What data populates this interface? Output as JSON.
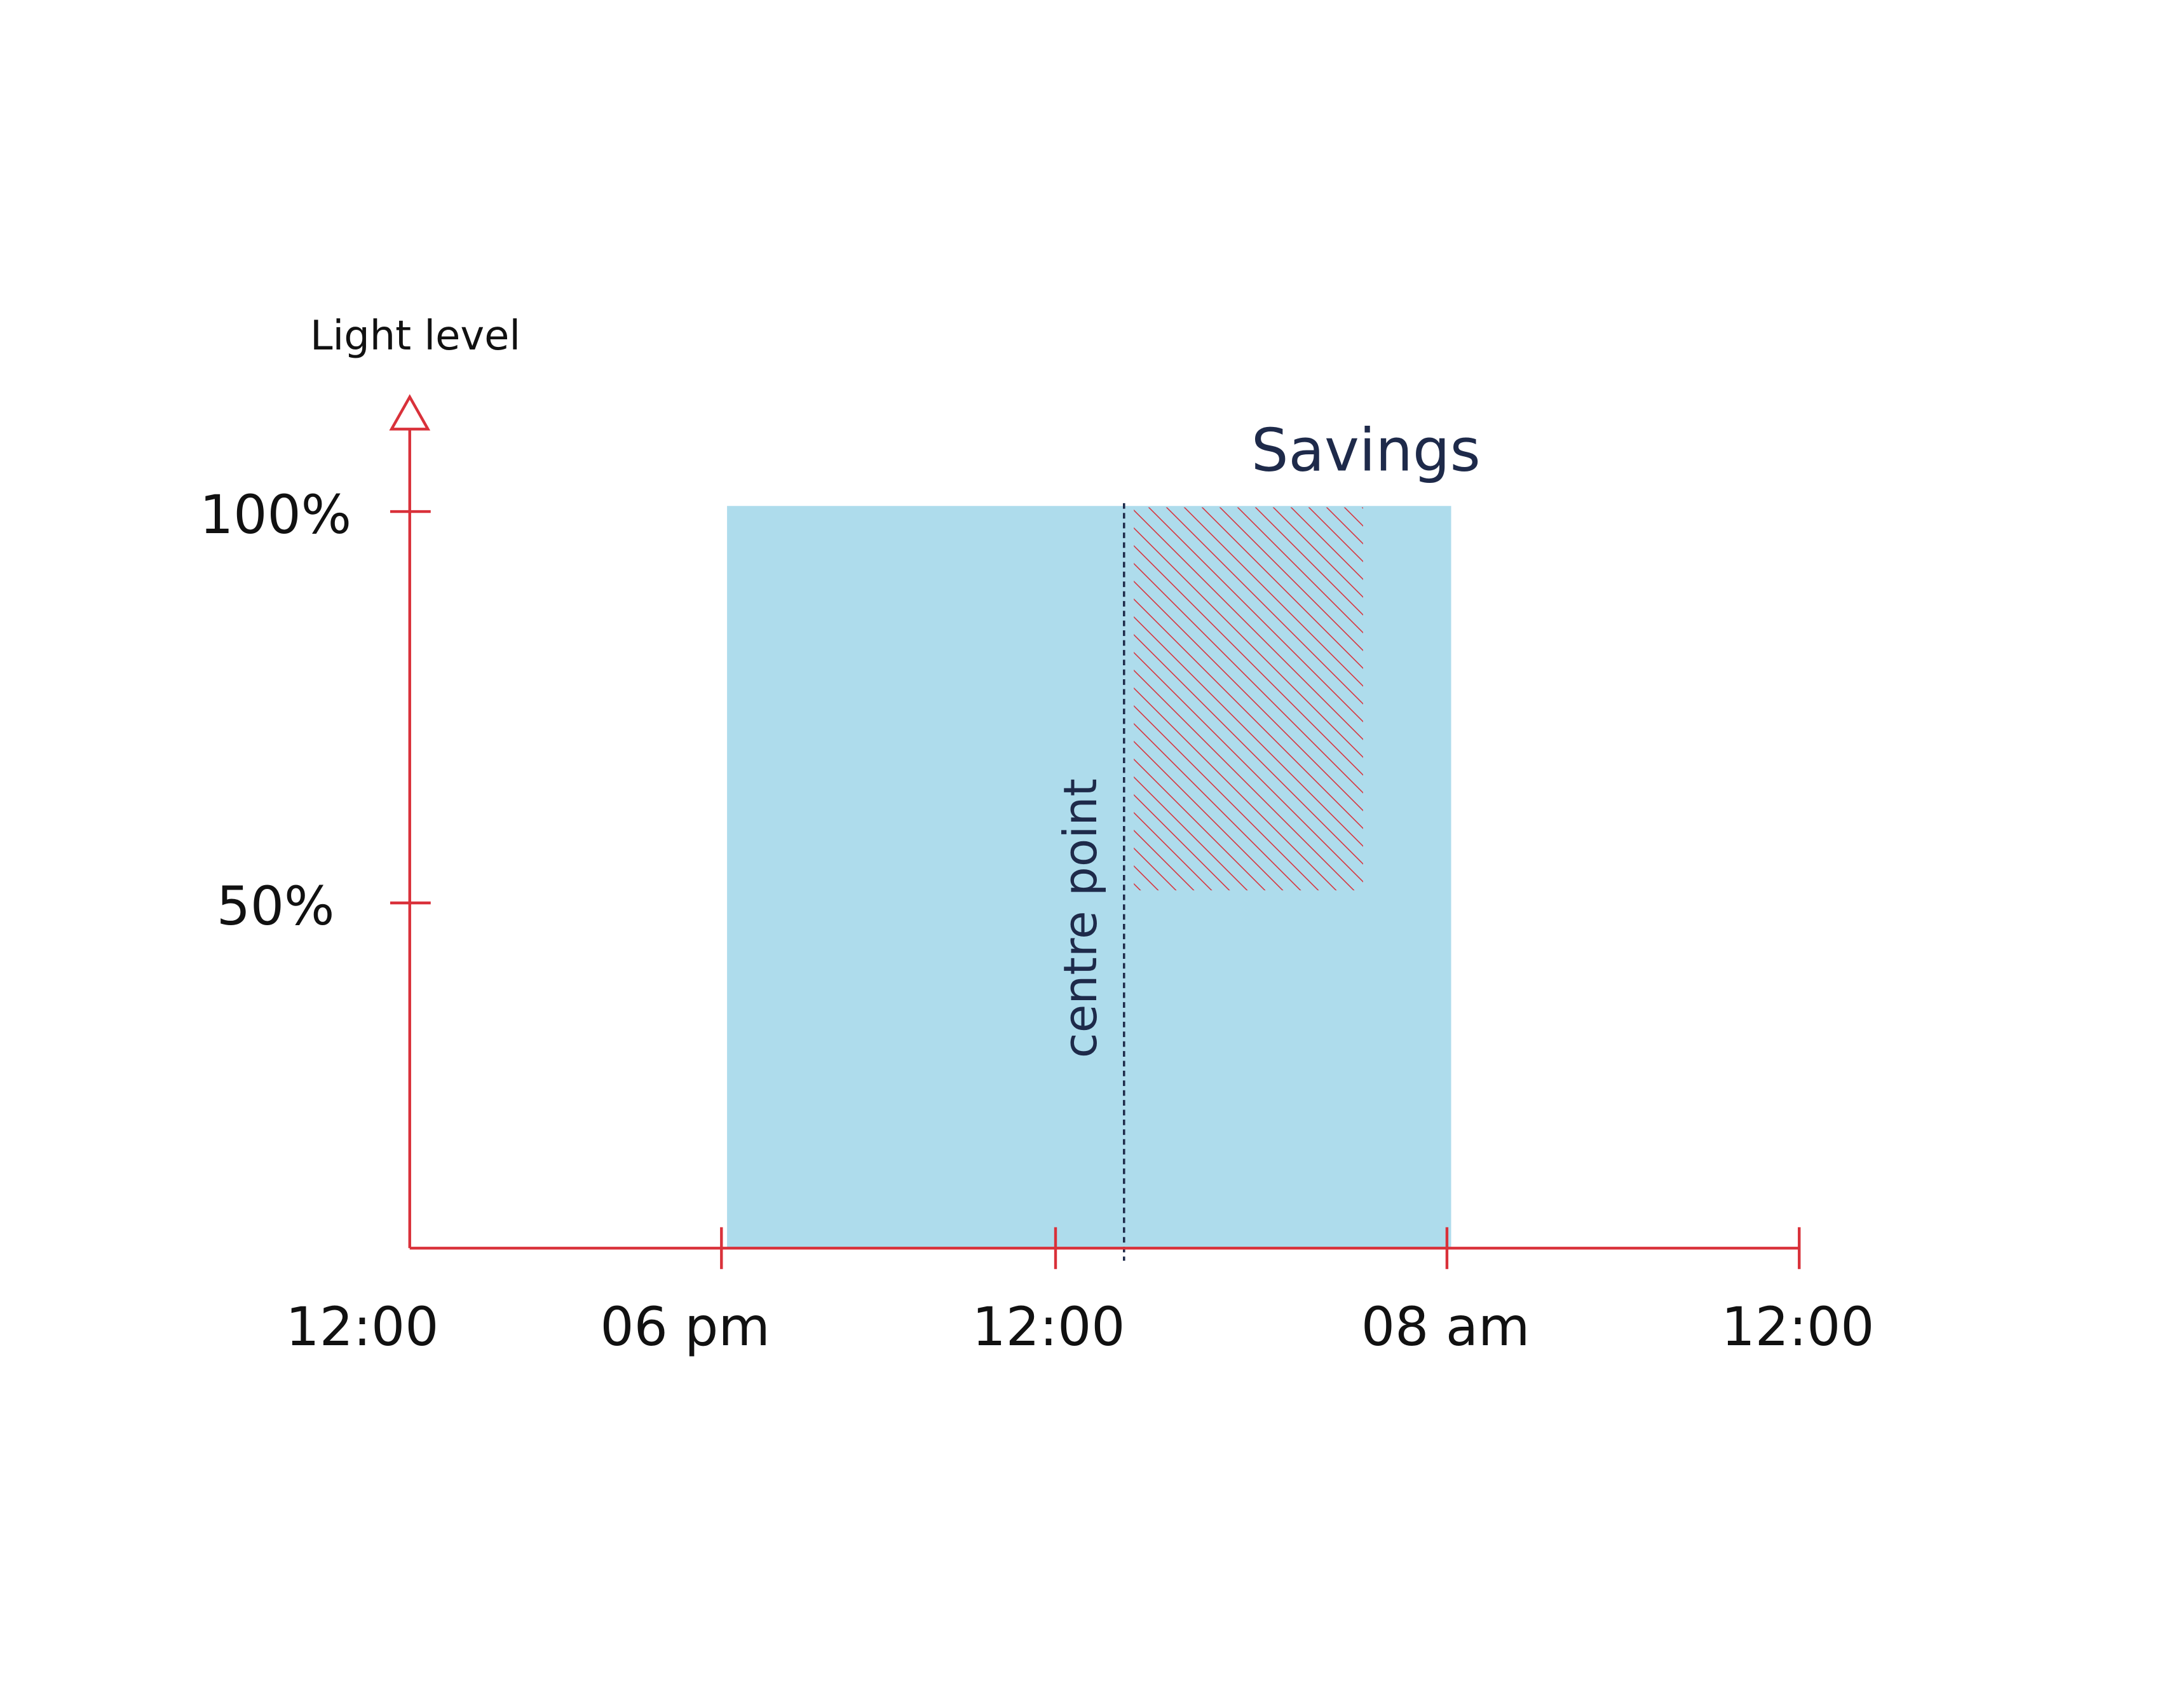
{
  "y_axis": {
    "label": "Light level",
    "ticks": [
      "100%",
      "50%"
    ]
  },
  "x_axis": {
    "ticks": [
      "12:00",
      "06 pm",
      "12:00",
      "08 am",
      "12:00"
    ]
  },
  "annotations": {
    "savings": "Savings",
    "centre_line": "centre point"
  }
}
